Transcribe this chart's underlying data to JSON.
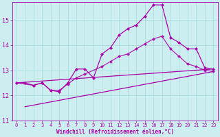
{
  "xlabel": "Windchill (Refroidissement éolien,°C)",
  "background_color": "#cceef0",
  "grid_color": "#aadddf",
  "line_color": "#aa00aa",
  "xlim": [
    -0.5,
    23.5
  ],
  "ylim": [
    11.0,
    15.7
  ],
  "yticks": [
    11,
    12,
    13,
    14,
    15
  ],
  "xticks": [
    0,
    1,
    2,
    3,
    4,
    5,
    6,
    7,
    8,
    9,
    10,
    11,
    12,
    13,
    14,
    15,
    16,
    17,
    18,
    19,
    20,
    21,
    22,
    23
  ],
  "series1_x": [
    0,
    1,
    2,
    3,
    4,
    5,
    6,
    7,
    8,
    9,
    10,
    11,
    12,
    13,
    14,
    15,
    16,
    17,
    18,
    19,
    20,
    21,
    22,
    23
  ],
  "series1_y": [
    12.5,
    12.5,
    12.4,
    12.5,
    12.2,
    12.15,
    12.5,
    13.05,
    13.05,
    12.7,
    13.65,
    13.9,
    14.4,
    14.65,
    14.8,
    15.15,
    15.6,
    15.6,
    14.3,
    14.1,
    13.85,
    13.85,
    13.1,
    13.05
  ],
  "series2_x": [
    0,
    2,
    3,
    4,
    5,
    6,
    7,
    8,
    10,
    11,
    12,
    13,
    14,
    15,
    16,
    17,
    18,
    19,
    20,
    21,
    22,
    23
  ],
  "series2_y": [
    12.5,
    12.4,
    12.5,
    12.2,
    12.2,
    12.45,
    12.7,
    12.85,
    13.15,
    13.35,
    13.55,
    13.65,
    13.85,
    14.05,
    14.25,
    14.35,
    13.85,
    13.55,
    13.25,
    13.15,
    13.0,
    12.95
  ],
  "series3_x": [
    0,
    23
  ],
  "series3_y": [
    12.5,
    13.05
  ],
  "series4_x": [
    1,
    23
  ],
  "series4_y": [
    11.55,
    12.95
  ]
}
